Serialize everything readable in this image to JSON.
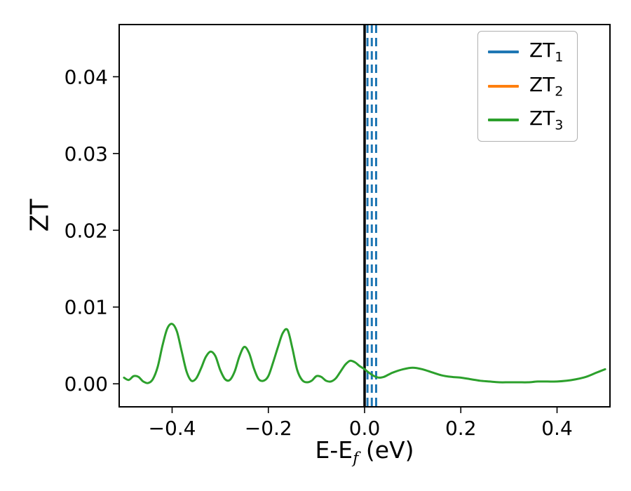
{
  "figure": {
    "background": "#ffffff"
  },
  "chart_data": {
    "type": "line",
    "title": "",
    "xlabel": {
      "pre": "E-E",
      "sub": "f",
      "post": " (eV)"
    },
    "ylabel": "ZT",
    "xlim": [
      -0.51,
      0.51
    ],
    "ylim": [
      -0.003,
      0.0468
    ],
    "grid": false,
    "xticks": [
      {
        "value": -0.4,
        "label": "−0.4"
      },
      {
        "value": -0.2,
        "label": "−0.2"
      },
      {
        "value": 0.0,
        "label": "0.0"
      },
      {
        "value": 0.2,
        "label": "0.2"
      },
      {
        "value": 0.4,
        "label": "0.4"
      }
    ],
    "yticks": [
      {
        "value": 0.0,
        "label": "0.00"
      },
      {
        "value": 0.01,
        "label": "0.01"
      },
      {
        "value": 0.02,
        "label": "0.02"
      },
      {
        "value": 0.03,
        "label": "0.03"
      },
      {
        "value": 0.04,
        "label": "0.04"
      }
    ],
    "legend": {
      "position": "upper-right",
      "entries": [
        {
          "name": "ZT1",
          "label_main": "ZT",
          "label_sub": "1",
          "color": "#1f77b4",
          "line_style": "solid"
        },
        {
          "name": "ZT2",
          "label_main": "ZT",
          "label_sub": "2",
          "color": "#ff7f0e",
          "line_style": "solid"
        },
        {
          "name": "ZT3",
          "label_main": "ZT",
          "label_sub": "3",
          "color": "#2ca02c",
          "line_style": "solid"
        }
      ]
    },
    "vlines": [
      {
        "x": 0.0,
        "color": "#000000",
        "style": "solid",
        "width": 3.5
      },
      {
        "x": 0.006,
        "color": "#1f77b4",
        "style": "dashed",
        "width": 3
      },
      {
        "x": 0.015,
        "color": "#1f77b4",
        "style": "dashed",
        "width": 3
      },
      {
        "x": 0.024,
        "color": "#1f77b4",
        "style": "dashed",
        "width": 3
      }
    ],
    "series": [
      {
        "name": "ZT3",
        "color": "#2ca02c",
        "width": 3,
        "x": [
          -0.5,
          -0.49,
          -0.48,
          -0.47,
          -0.46,
          -0.45,
          -0.44,
          -0.43,
          -0.42,
          -0.41,
          -0.4,
          -0.39,
          -0.38,
          -0.37,
          -0.36,
          -0.35,
          -0.34,
          -0.33,
          -0.32,
          -0.31,
          -0.3,
          -0.29,
          -0.28,
          -0.27,
          -0.26,
          -0.25,
          -0.24,
          -0.23,
          -0.22,
          -0.21,
          -0.2,
          -0.19,
          -0.18,
          -0.17,
          -0.16,
          -0.15,
          -0.14,
          -0.13,
          -0.12,
          -0.11,
          -0.1,
          -0.09,
          -0.08,
          -0.07,
          -0.06,
          -0.05,
          -0.04,
          -0.03,
          -0.02,
          -0.01,
          0.0,
          0.01,
          0.02,
          0.03,
          0.04,
          0.05,
          0.06,
          0.08,
          0.1,
          0.12,
          0.14,
          0.16,
          0.18,
          0.2,
          0.22,
          0.24,
          0.26,
          0.28,
          0.3,
          0.32,
          0.34,
          0.36,
          0.38,
          0.4,
          0.42,
          0.44,
          0.46,
          0.48,
          0.5
        ],
        "y": [
          0.0008,
          0.0005,
          0.001,
          0.0009,
          0.0003,
          0.0001,
          0.0006,
          0.0022,
          0.005,
          0.0072,
          0.0078,
          0.0068,
          0.0042,
          0.0016,
          0.0004,
          0.0007,
          0.002,
          0.0035,
          0.0042,
          0.0036,
          0.0018,
          0.0006,
          0.0005,
          0.0016,
          0.0036,
          0.0048,
          0.004,
          0.002,
          0.0006,
          0.0004,
          0.001,
          0.0028,
          0.0048,
          0.0066,
          0.007,
          0.0046,
          0.0018,
          0.0005,
          0.0002,
          0.0004,
          0.001,
          0.0009,
          0.0004,
          0.0003,
          0.0007,
          0.0016,
          0.0025,
          0.003,
          0.0028,
          0.0023,
          0.0019,
          0.0014,
          0.001,
          0.0008,
          0.0009,
          0.0012,
          0.0015,
          0.0019,
          0.0021,
          0.0019,
          0.0015,
          0.0011,
          0.0009,
          0.0008,
          0.0006,
          0.0004,
          0.0003,
          0.0002,
          0.0002,
          0.0002,
          0.0002,
          0.0003,
          0.0003,
          0.0003,
          0.0004,
          0.0006,
          0.0009,
          0.0014,
          0.0019
        ]
      }
    ]
  }
}
